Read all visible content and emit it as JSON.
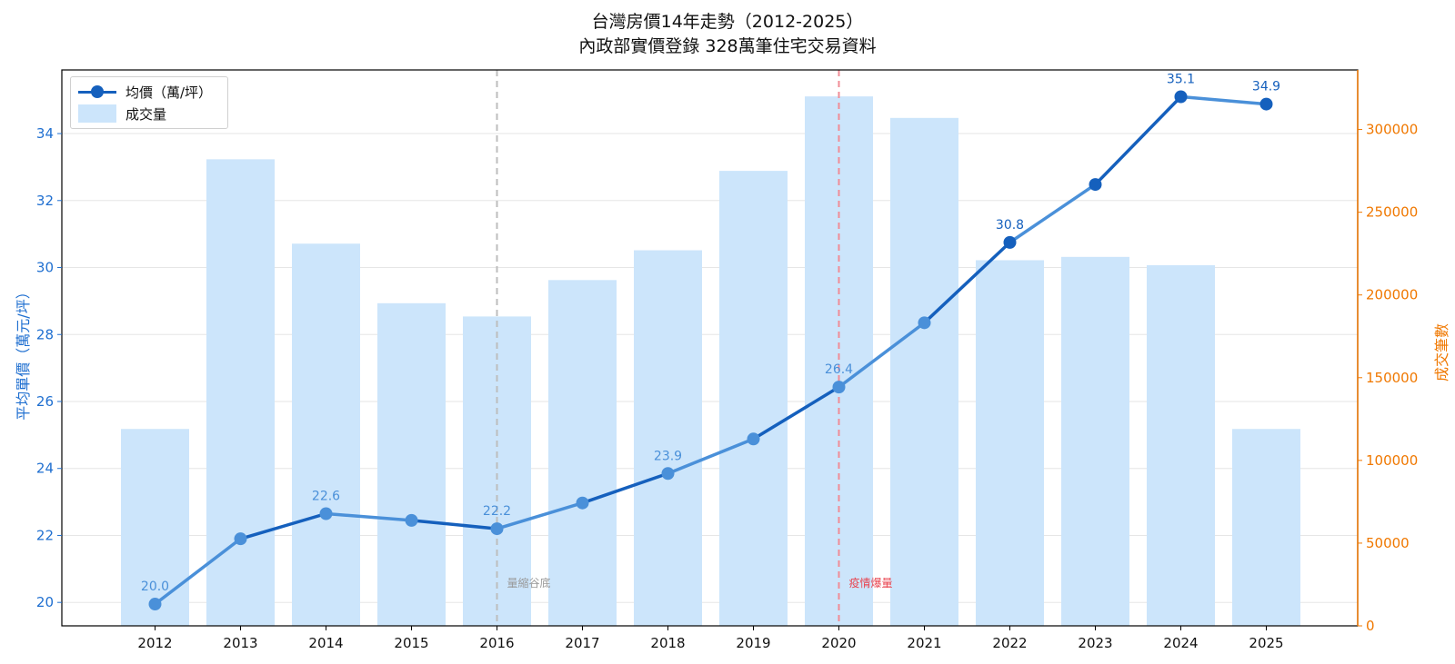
{
  "chart_data": {
    "type": "bar+line",
    "title": "台灣房價14年走勢（2012-2025）",
    "subtitle": "內政部實價登錄 328萬筆住宅交易資料",
    "ylabel_left": "平均單價（萬元/坪）",
    "ylabel_right": "成交筆數",
    "categories": [
      "2012",
      "2013",
      "2014",
      "2015",
      "2016",
      "2017",
      "2018",
      "2019",
      "2020",
      "2021",
      "2022",
      "2023",
      "2024",
      "2025"
    ],
    "series": [
      {
        "name": "均價（萬/坪）",
        "type": "line",
        "axis": "left",
        "color": "#1560bd",
        "values": [
          19.95,
          21.9,
          22.65,
          22.45,
          22.2,
          22.97,
          23.85,
          24.88,
          26.43,
          28.35,
          30.75,
          32.48,
          35.1,
          34.88
        ]
      },
      {
        "name": "成交量",
        "type": "bar",
        "axis": "right",
        "color": "#cce5fb",
        "values": [
          119000,
          282000,
          231000,
          195000,
          187000,
          209000,
          227000,
          275000,
          320000,
          307000,
          221000,
          223000,
          218000,
          119000
        ]
      }
    ],
    "data_labels": [
      {
        "index": 0,
        "text": "20.0"
      },
      {
        "index": 2,
        "text": "22.6"
      },
      {
        "index": 4,
        "text": "22.2"
      },
      {
        "index": 6,
        "text": "23.9"
      },
      {
        "index": 8,
        "text": "26.4"
      },
      {
        "index": 10,
        "text": "30.8"
      },
      {
        "index": 12,
        "text": "35.1"
      },
      {
        "index": 13,
        "text": "34.9"
      }
    ],
    "annotations": [
      {
        "year": "2016",
        "text": "量縮谷底",
        "color": "#999999"
      },
      {
        "year": "2020",
        "text": "疫情爆量",
        "color": "#e8444f"
      }
    ],
    "ylim_left": [
      19.3,
      35.9
    ],
    "ylim_right": [
      0,
      336000
    ],
    "yticks_left": [
      20,
      22,
      24,
      26,
      28,
      30,
      32,
      34
    ],
    "yticks_right": [
      0,
      50000,
      100000,
      150000,
      200000,
      250000,
      300000
    ],
    "grid": "horizontal",
    "legend": "top-left"
  }
}
